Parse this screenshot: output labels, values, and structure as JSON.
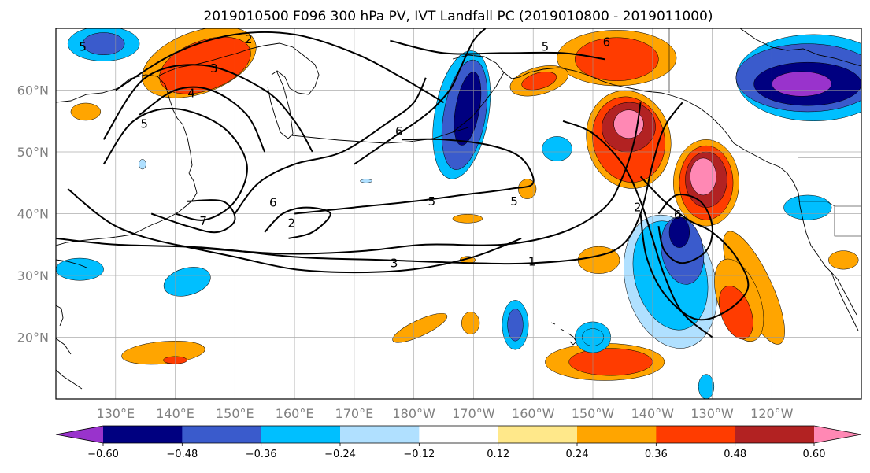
{
  "title": "2019010500 F096 300 hPa PV, IVT Landfall PC (2019010800 - 2019011000)",
  "map": {
    "lon_range": [
      120,
      255
    ],
    "lat_range": [
      10,
      70
    ],
    "lat_ticks": [
      {
        "lat": 60,
        "label": "60°N"
      },
      {
        "lat": 50,
        "label": "50°N"
      },
      {
        "lat": 40,
        "label": "40°N"
      },
      {
        "lat": 30,
        "label": "30°N"
      },
      {
        "lat": 20,
        "label": "20°N"
      }
    ],
    "lon_ticks": [
      {
        "lon": 130,
        "label": "130°E"
      },
      {
        "lon": 140,
        "label": "140°E"
      },
      {
        "lon": 150,
        "label": "150°E"
      },
      {
        "lon": 160,
        "label": "160°E"
      },
      {
        "lon": 170,
        "label": "170°E"
      },
      {
        "lon": 180,
        "label": "180°W"
      },
      {
        "lon": 190,
        "label": "170°W"
      },
      {
        "lon": 200,
        "label": "160°W"
      },
      {
        "lon": 210,
        "label": "150°W"
      },
      {
        "lon": 220,
        "label": "140°W"
      },
      {
        "lon": 230,
        "label": "130°W"
      },
      {
        "lon": 240,
        "label": "120°W"
      }
    ],
    "contour_labels": [
      {
        "text": "2",
        "lon": 152.3,
        "lat": 68.2
      },
      {
        "text": "3",
        "lon": 146.5,
        "lat": 63.5
      },
      {
        "text": "4",
        "lon": 142.7,
        "lat": 59.5
      },
      {
        "text": "5",
        "lon": 134.8,
        "lat": 54.5
      },
      {
        "text": "6",
        "lon": 156.4,
        "lat": 41.8
      },
      {
        "text": "7",
        "lon": 144.7,
        "lat": 38.8
      },
      {
        "text": "2",
        "lon": 159.5,
        "lat": 38.5
      },
      {
        "text": "3",
        "lon": 176.7,
        "lat": 32.0
      },
      {
        "text": "1",
        "lon": 199.8,
        "lat": 32.2
      },
      {
        "text": "5",
        "lon": 183.0,
        "lat": 42.0
      },
      {
        "text": "5",
        "lon": 196.8,
        "lat": 42.0
      },
      {
        "text": "6",
        "lon": 177.5,
        "lat": 53.3
      },
      {
        "text": "5",
        "lon": 202.0,
        "lat": 67.0
      },
      {
        "text": "6",
        "lon": 212.3,
        "lat": 67.8
      },
      {
        "text": "2",
        "lon": 217.5,
        "lat": 41.0
      },
      {
        "text": "6",
        "lon": 224.2,
        "lat": 39.8
      },
      {
        "text": "5",
        "lon": 124.5,
        "lat": 67.0
      }
    ],
    "pv_contours": [
      {
        "level": 1,
        "points": [
          [
            120,
            36
          ],
          [
            130,
            35
          ],
          [
            145,
            34.5
          ],
          [
            160,
            33
          ],
          [
            175,
            32.5
          ],
          [
            190,
            32
          ],
          [
            200,
            32
          ],
          [
            210,
            33
          ],
          [
            215,
            35
          ],
          [
            218,
            40
          ],
          [
            220,
            48
          ],
          [
            222,
            54
          ],
          [
            225,
            58
          ]
        ]
      },
      {
        "level": 2,
        "points": [
          [
            122,
            44
          ],
          [
            130,
            38
          ],
          [
            140,
            35
          ],
          [
            150,
            34
          ],
          [
            160,
            33.5
          ],
          [
            172,
            34
          ],
          [
            182,
            35
          ],
          [
            195,
            35
          ],
          [
            205,
            37
          ],
          [
            212,
            41
          ],
          [
            215,
            46
          ],
          [
            217,
            52
          ],
          [
            218,
            58
          ]
        ]
      },
      {
        "level": 2,
        "points": [
          [
            130,
            60
          ],
          [
            140,
            66
          ],
          [
            150,
            69
          ],
          [
            160,
            69
          ],
          [
            170,
            66
          ],
          [
            178,
            62
          ],
          [
            185,
            58
          ]
        ]
      },
      {
        "level": 2,
        "points": [
          [
            205,
            55
          ],
          [
            210,
            53
          ],
          [
            215,
            48
          ],
          [
            218,
            42
          ],
          [
            220,
            36
          ],
          [
            222,
            30
          ],
          [
            225,
            24
          ],
          [
            230,
            20
          ]
        ]
      },
      {
        "level": 3,
        "points": [
          [
            128,
            52
          ],
          [
            135,
            62
          ],
          [
            145,
            64
          ],
          [
            155,
            60
          ],
          [
            160,
            55
          ],
          [
            163,
            50
          ]
        ]
      },
      {
        "level": 3,
        "points": [
          [
            140,
            35
          ],
          [
            150,
            33
          ],
          [
            160,
            31
          ],
          [
            170,
            30.5
          ],
          [
            180,
            31
          ],
          [
            190,
            33
          ],
          [
            198,
            36
          ]
        ]
      },
      {
        "level": 4,
        "points": [
          [
            134,
            56
          ],
          [
            140,
            60
          ],
          [
            146,
            60
          ],
          [
            152,
            56
          ],
          [
            155,
            50
          ]
        ]
      },
      {
        "level": 5,
        "points": [
          [
            128,
            48
          ],
          [
            133,
            55
          ],
          [
            140,
            57
          ],
          [
            148,
            54
          ],
          [
            152,
            48
          ],
          [
            150,
            42
          ],
          [
            145,
            39
          ],
          [
            140,
            40
          ]
        ]
      },
      {
        "level": 5,
        "points": [
          [
            160,
            40
          ],
          [
            170,
            41
          ],
          [
            180,
            42
          ],
          [
            188,
            43
          ],
          [
            196,
            44
          ],
          [
            200,
            45
          ],
          [
            198,
            49
          ],
          [
            193,
            51
          ],
          [
            185,
            52
          ],
          [
            178,
            52
          ]
        ]
      },
      {
        "level": 5,
        "points": [
          [
            176,
            68
          ],
          [
            185,
            66
          ],
          [
            195,
            66
          ],
          [
            205,
            66
          ],
          [
            212,
            65
          ]
        ]
      },
      {
        "level": 5,
        "points": [
          [
            218,
            46
          ],
          [
            222,
            42
          ],
          [
            226,
            39
          ],
          [
            230,
            37
          ],
          [
            234,
            33
          ],
          [
            236,
            28
          ],
          [
            232,
            24
          ],
          [
            227,
            23
          ],
          [
            222,
            27
          ],
          [
            219,
            33
          ],
          [
            218,
            40
          ]
        ]
      },
      {
        "level": 6,
        "points": [
          [
            150,
            40
          ],
          [
            154,
            45
          ],
          [
            160,
            48
          ],
          [
            168,
            50
          ],
          [
            176,
            55
          ],
          [
            180,
            58
          ],
          [
            182,
            62
          ]
        ]
      },
      {
        "level": 6,
        "points": [
          [
            170,
            48
          ],
          [
            176,
            52
          ],
          [
            182,
            56
          ],
          [
            186,
            60
          ],
          [
            188,
            64
          ],
          [
            190,
            68
          ],
          [
            192,
            70
          ]
        ]
      },
      {
        "level": 6,
        "points": [
          [
            221,
            40
          ],
          [
            224,
            43
          ],
          [
            228,
            42
          ],
          [
            230,
            38
          ],
          [
            229,
            34
          ],
          [
            225,
            32
          ],
          [
            222,
            34
          ],
          [
            221,
            38
          ]
        ]
      },
      {
        "level": 7,
        "points": [
          [
            136,
            40
          ],
          [
            142,
            38
          ],
          [
            147,
            37
          ],
          [
            150,
            39
          ],
          [
            148,
            42
          ],
          [
            142,
            42
          ]
        ]
      },
      {
        "level": 2,
        "points": [
          [
            155,
            37
          ],
          [
            158,
            40
          ],
          [
            162,
            41
          ],
          [
            166,
            40
          ],
          [
            163,
            37
          ],
          [
            159,
            36
          ]
        ]
      }
    ],
    "pc_blobs": [
      {
        "value": 0.4,
        "lon": 145,
        "lat": 64,
        "rx": 8,
        "ry": 4,
        "rot": -20
      },
      {
        "value": 0.3,
        "lon": 144,
        "lat": 64.5,
        "rx": 10,
        "ry": 5,
        "rot": -20
      },
      {
        "value": 0.45,
        "lon": 214,
        "lat": 65,
        "rx": 7,
        "ry": 3.5,
        "rot": 0
      },
      {
        "value": 0.3,
        "lon": 214,
        "lat": 65.2,
        "rx": 10,
        "ry": 4.5,
        "rot": 0
      },
      {
        "value": 0.62,
        "lon": 216,
        "lat": 54.5,
        "rx": 2.5,
        "ry": 2.3,
        "rot": 0
      },
      {
        "value": 0.5,
        "lon": 216,
        "lat": 54,
        "rx": 4.5,
        "ry": 4,
        "rot": -10
      },
      {
        "value": 0.4,
        "lon": 216,
        "lat": 52,
        "rx": 6,
        "ry": 7,
        "rot": -15
      },
      {
        "value": 0.3,
        "lon": 216,
        "lat": 52,
        "rx": 7,
        "ry": 8,
        "rot": -15
      },
      {
        "value": 0.62,
        "lon": 228.5,
        "lat": 46,
        "rx": 2.2,
        "ry": 3,
        "rot": 0
      },
      {
        "value": 0.5,
        "lon": 229,
        "lat": 45.5,
        "rx": 3.5,
        "ry": 4.5,
        "rot": 0
      },
      {
        "value": 0.4,
        "lon": 229,
        "lat": 45,
        "rx": 4.5,
        "ry": 6,
        "rot": 0
      },
      {
        "value": 0.25,
        "lon": 229,
        "lat": 45,
        "rx": 5.5,
        "ry": 7,
        "rot": 0
      },
      {
        "value": 0.4,
        "lon": 234,
        "lat": 24,
        "rx": 2.5,
        "ry": 4.5,
        "rot": -20
      },
      {
        "value": 0.3,
        "lon": 234.5,
        "lat": 26,
        "rx": 3.5,
        "ry": 7,
        "rot": -20
      },
      {
        "value": 0.25,
        "lon": 237,
        "lat": 28,
        "rx": 3,
        "ry": 10,
        "rot": -25
      },
      {
        "value": 0.4,
        "lon": 213,
        "lat": 16,
        "rx": 7,
        "ry": 2.2,
        "rot": 0
      },
      {
        "value": 0.3,
        "lon": 212,
        "lat": 16,
        "rx": 10,
        "ry": 3,
        "rot": 0
      },
      {
        "value": 0.3,
        "lon": 138,
        "lat": 17.5,
        "rx": 7,
        "ry": 1.8,
        "rot": -5
      },
      {
        "value": 0.38,
        "lon": 140,
        "lat": 16.3,
        "rx": 2,
        "ry": 0.6,
        "rot": 0
      },
      {
        "value": 0.3,
        "lon": 201,
        "lat": 61.5,
        "rx": 5,
        "ry": 2.2,
        "rot": -15
      },
      {
        "value": 0.38,
        "lon": 201,
        "lat": 61.5,
        "rx": 3,
        "ry": 1.3,
        "rot": -15
      },
      {
        "value": 0.3,
        "lon": 211,
        "lat": 32.5,
        "rx": 3.5,
        "ry": 2.2,
        "rot": 0
      },
      {
        "value": 0.3,
        "lon": 125,
        "lat": 56.5,
        "rx": 2.5,
        "ry": 1.4,
        "rot": 0
      },
      {
        "value": 0.3,
        "lon": 189.5,
        "lat": 22.3,
        "rx": 1.5,
        "ry": 1.8,
        "rot": 0
      },
      {
        "value": 0.28,
        "lon": 199,
        "lat": 44,
        "rx": 1.5,
        "ry": 1.6,
        "rot": 0
      },
      {
        "value": 0.26,
        "lon": 189,
        "lat": 39.2,
        "rx": 2.5,
        "ry": 0.7,
        "rot": 0
      },
      {
        "value": 0.25,
        "lon": 181,
        "lat": 21.5,
        "rx": 5,
        "ry": 1.3,
        "rot": -25
      },
      {
        "value": 0.3,
        "lon": 252,
        "lat": 32.5,
        "rx": 2.5,
        "ry": 1.5,
        "rot": 0
      },
      {
        "value": 0.26,
        "lon": 189,
        "lat": 32.5,
        "rx": 1.3,
        "ry": 0.6,
        "rot": 0
      },
      {
        "value": -0.55,
        "lon": 189,
        "lat": 57,
        "rx": 2,
        "ry": 6,
        "rot": 10
      },
      {
        "value": -0.42,
        "lon": 188.5,
        "lat": 56,
        "rx": 3.5,
        "ry": 9,
        "rot": 10
      },
      {
        "value": -0.3,
        "lon": 188,
        "lat": 56,
        "rx": 4.5,
        "ry": 10.5,
        "rot": 10
      },
      {
        "value": -0.62,
        "lon": 245,
        "lat": 61,
        "rx": 5,
        "ry": 2,
        "rot": 0
      },
      {
        "value": -0.5,
        "lon": 246,
        "lat": 61,
        "rx": 9,
        "ry": 3.5,
        "rot": 0
      },
      {
        "value": -0.4,
        "lon": 246,
        "lat": 62,
        "rx": 12,
        "ry": 5.5,
        "rot": 0
      },
      {
        "value": -0.3,
        "lon": 247,
        "lat": 62,
        "rx": 13,
        "ry": 7,
        "rot": 0
      },
      {
        "value": -0.5,
        "lon": 224.5,
        "lat": 37,
        "rx": 1.7,
        "ry": 2.5,
        "rot": 0
      },
      {
        "value": -0.4,
        "lon": 225,
        "lat": 34,
        "rx": 3.5,
        "ry": 5.5,
        "rot": -10
      },
      {
        "value": -0.3,
        "lon": 223,
        "lat": 30,
        "rx": 6,
        "ry": 9,
        "rot": -15
      },
      {
        "value": -0.24,
        "lon": 223,
        "lat": 29,
        "rx": 7.5,
        "ry": 11,
        "rot": -15
      },
      {
        "value": -0.4,
        "lon": 128,
        "lat": 67.5,
        "rx": 3.5,
        "ry": 1.8,
        "rot": 0
      },
      {
        "value": -0.3,
        "lon": 128,
        "lat": 67.5,
        "rx": 6,
        "ry": 2.8,
        "rot": 0
      },
      {
        "value": -0.3,
        "lon": 124,
        "lat": 31,
        "rx": 4,
        "ry": 1.8,
        "rot": 0
      },
      {
        "value": -0.3,
        "lon": 142,
        "lat": 29,
        "rx": 4,
        "ry": 2.2,
        "rot": -15
      },
      {
        "value": -0.4,
        "lon": 197,
        "lat": 22,
        "rx": 1.3,
        "ry": 2.6,
        "rot": 0
      },
      {
        "value": -0.28,
        "lon": 197,
        "lat": 22,
        "rx": 2.2,
        "ry": 4,
        "rot": 0
      },
      {
        "value": -0.35,
        "lon": 210,
        "lat": 20,
        "rx": 1.8,
        "ry": 1.4,
        "rot": 0
      },
      {
        "value": -0.26,
        "lon": 210,
        "lat": 20,
        "rx": 3,
        "ry": 2.5,
        "rot": 0
      },
      {
        "value": -0.3,
        "lon": 246,
        "lat": 41,
        "rx": 4,
        "ry": 2,
        "rot": 0
      },
      {
        "value": -0.26,
        "lon": 204,
        "lat": 50.5,
        "rx": 2.5,
        "ry": 2,
        "rot": 0
      },
      {
        "value": -0.26,
        "lon": 229,
        "lat": 12,
        "rx": 1.3,
        "ry": 2,
        "rot": 0
      },
      {
        "value": -0.22,
        "lon": 134.5,
        "lat": 48,
        "rx": 0.6,
        "ry": 0.8,
        "rot": 0
      },
      {
        "value": -0.22,
        "lon": 172,
        "lat": 45.3,
        "rx": 1,
        "ry": 0.3,
        "rot": 0
      }
    ]
  },
  "colorbar": {
    "ticks": [
      {
        "value": -0.6,
        "label": "−0.60"
      },
      {
        "value": -0.48,
        "label": "−0.48"
      },
      {
        "value": -0.36,
        "label": "−0.36"
      },
      {
        "value": -0.24,
        "label": "−0.24"
      },
      {
        "value": -0.12,
        "label": "−0.12"
      },
      {
        "value": 0.12,
        "label": "0.12"
      },
      {
        "value": 0.24,
        "label": "0.24"
      },
      {
        "value": 0.36,
        "label": "0.36"
      },
      {
        "value": 0.48,
        "label": "0.48"
      },
      {
        "value": 0.6,
        "label": "0.60"
      }
    ],
    "boundaries": [
      -0.72,
      -0.6,
      -0.48,
      -0.36,
      -0.24,
      -0.12,
      0.12,
      0.24,
      0.36,
      0.48,
      0.6,
      0.72
    ],
    "colors": [
      "#9933cc",
      "#000080",
      "#3a5bcc",
      "#00bfff",
      "#b0e0ff",
      "#ffffff",
      "#ffe88a",
      "#ffa500",
      "#ff3c00",
      "#b22222",
      "#ff88b4"
    ]
  }
}
